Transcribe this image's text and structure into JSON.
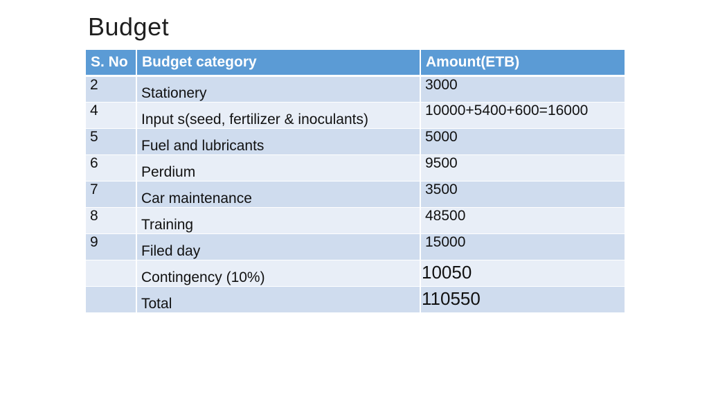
{
  "slide": {
    "title": "Budget"
  },
  "table": {
    "headers": {
      "sno": "S. No",
      "category": "Budget category",
      "amount": "Amount(ETB)"
    },
    "rows": [
      {
        "sno": "2",
        "category": "Stationery",
        "amount": "3000"
      },
      {
        "sno": "4",
        "category": "Input s(seed, fertilizer & inoculants)",
        "amount": "10000+5400+600=16000"
      },
      {
        "sno": "5",
        "category": "Fuel and lubricants",
        "amount": "5000"
      },
      {
        "sno": "6",
        "category": "Perdium",
        "amount": "9500"
      },
      {
        "sno": "7",
        "category": "Car maintenance",
        "amount": "3500"
      },
      {
        "sno": "8",
        "category": "Training",
        "amount": "48500"
      },
      {
        "sno": "9",
        "category": "Filed day",
        "amount": "15000"
      },
      {
        "sno": "",
        "category": "Contingency (10%)",
        "amount": "10050"
      },
      {
        "sno": "",
        "category": "Total",
        "amount": "110550"
      }
    ]
  },
  "colors": {
    "header_bg": "#5b9bd5",
    "row_dark": "#cfdcee",
    "row_light": "#e8eef7"
  }
}
